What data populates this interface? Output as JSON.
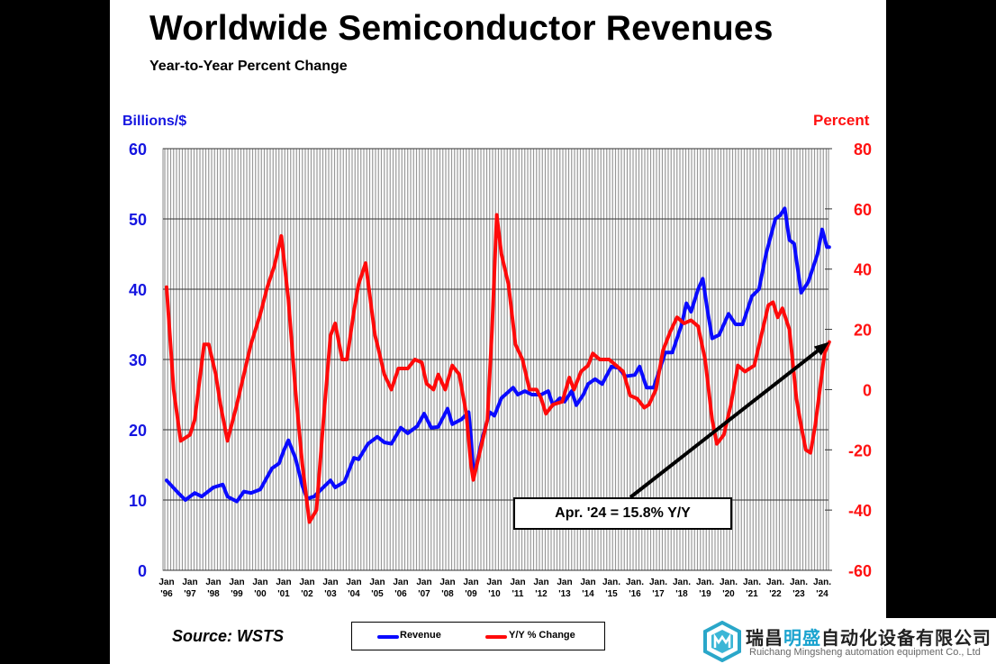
{
  "chart_data": {
    "type": "line",
    "title": "Worldwide Semiconductor Revenues",
    "subtitle": "Year-to-Year Percent Change",
    "ylabel_left": "Billions/$",
    "ylabel_right": "Percent",
    "ylim_left": [
      0,
      60
    ],
    "ylim_right": [
      -60,
      80
    ],
    "yticks_left": [
      "0",
      "10",
      "20",
      "30",
      "40",
      "50",
      "60"
    ],
    "yticks_right": [
      "-60",
      "-40",
      "-20",
      "0",
      "20",
      "40",
      "60",
      "80"
    ],
    "xticks": [
      [
        "Jan",
        "'96"
      ],
      [
        "Jan",
        "'97"
      ],
      [
        "Jan",
        "'98"
      ],
      [
        "Jan",
        "'99"
      ],
      [
        "Jan",
        "'00"
      ],
      [
        "Jan",
        "'01"
      ],
      [
        "Jan",
        "'02"
      ],
      [
        "Jan",
        "'03"
      ],
      [
        "Jan",
        "'04"
      ],
      [
        "Jan",
        "'05"
      ],
      [
        "Jan",
        "'06"
      ],
      [
        "Jan",
        "'07"
      ],
      [
        "Jan",
        "'08"
      ],
      [
        "Jan",
        "'09"
      ],
      [
        "Jan",
        "'10"
      ],
      [
        "Jan",
        "'11"
      ],
      [
        "Jan",
        "'12"
      ],
      [
        "Jan",
        "'13"
      ],
      [
        "Jan",
        "'14"
      ],
      [
        "Jan.",
        "'15"
      ],
      [
        "Jan.",
        "'16"
      ],
      [
        "Jan.",
        "'17"
      ],
      [
        "Jan.",
        "'18"
      ],
      [
        "Jan.",
        "'19"
      ],
      [
        "Jan.",
        "'20"
      ],
      [
        "Jan.",
        "'21"
      ],
      [
        "Jan.",
        "'22"
      ],
      [
        "Jan.",
        "'23"
      ],
      [
        "Jan.",
        "'24"
      ]
    ],
    "grid": true,
    "legend_placement": "bottom",
    "series": [
      {
        "name": "Revenue",
        "axis": "left",
        "color": "#0a0aff",
        "points": [
          [
            1996.0,
            12.8
          ],
          [
            1996.5,
            11
          ],
          [
            1996.8,
            10
          ],
          [
            1997.2,
            11
          ],
          [
            1997.5,
            10.5
          ],
          [
            1998.0,
            11.8
          ],
          [
            1998.4,
            12.2
          ],
          [
            1998.6,
            10.5
          ],
          [
            1999.0,
            9.8
          ],
          [
            1999.3,
            11.2
          ],
          [
            1999.6,
            11
          ],
          [
            2000.0,
            11.5
          ],
          [
            2000.5,
            14.5
          ],
          [
            2000.8,
            15.2
          ],
          [
            2001.0,
            17
          ],
          [
            2001.2,
            18.5
          ],
          [
            2001.5,
            16
          ],
          [
            2001.8,
            12
          ],
          [
            2002.0,
            10.2
          ],
          [
            2002.3,
            10.5
          ],
          [
            2002.6,
            11.5
          ],
          [
            2003.0,
            12.8
          ],
          [
            2003.2,
            11.8
          ],
          [
            2003.6,
            12.6
          ],
          [
            2004.0,
            16
          ],
          [
            2004.2,
            15.8
          ],
          [
            2004.6,
            18
          ],
          [
            2005.0,
            19
          ],
          [
            2005.3,
            18.2
          ],
          [
            2005.6,
            18
          ],
          [
            2006.0,
            20.3
          ],
          [
            2006.3,
            19.5
          ],
          [
            2006.7,
            20.5
          ],
          [
            2007.0,
            22.3
          ],
          [
            2007.3,
            20.3
          ],
          [
            2007.6,
            20.4
          ],
          [
            2008.0,
            23
          ],
          [
            2008.2,
            20.8
          ],
          [
            2008.6,
            21.5
          ],
          [
            2008.9,
            22.5
          ],
          [
            2009.0,
            19
          ],
          [
            2009.1,
            14
          ],
          [
            2009.2,
            14.5
          ],
          [
            2009.5,
            19
          ],
          [
            2009.8,
            22.5
          ],
          [
            2010.0,
            22
          ],
          [
            2010.3,
            24.5
          ],
          [
            2010.8,
            26
          ],
          [
            2011.0,
            25
          ],
          [
            2011.3,
            25.5
          ],
          [
            2011.6,
            25
          ],
          [
            2012.0,
            25
          ],
          [
            2012.3,
            25.5
          ],
          [
            2012.5,
            23.5
          ],
          [
            2012.8,
            24.5
          ],
          [
            2013.0,
            24
          ],
          [
            2013.3,
            25.5
          ],
          [
            2013.5,
            23.5
          ],
          [
            2013.8,
            25
          ],
          [
            2014.0,
            26.5
          ],
          [
            2014.3,
            27.2
          ],
          [
            2014.6,
            26.5
          ],
          [
            2015.0,
            29
          ],
          [
            2015.3,
            28.8
          ],
          [
            2015.6,
            27.6
          ],
          [
            2016.0,
            27.8
          ],
          [
            2016.2,
            29
          ],
          [
            2016.5,
            26
          ],
          [
            2016.8,
            26
          ],
          [
            2017.0,
            28
          ],
          [
            2017.3,
            31
          ],
          [
            2017.6,
            31
          ],
          [
            2018.0,
            35
          ],
          [
            2018.2,
            38
          ],
          [
            2018.4,
            36.8
          ],
          [
            2018.7,
            40
          ],
          [
            2018.9,
            41.5
          ],
          [
            2019.1,
            37
          ],
          [
            2019.3,
            33
          ],
          [
            2019.6,
            33.5
          ],
          [
            2020.0,
            36.5
          ],
          [
            2020.3,
            35
          ],
          [
            2020.6,
            35
          ],
          [
            2021.0,
            39
          ],
          [
            2021.3,
            40
          ],
          [
            2021.6,
            45
          ],
          [
            2022.0,
            50
          ],
          [
            2022.2,
            50.5
          ],
          [
            2022.4,
            51.5
          ],
          [
            2022.6,
            47
          ],
          [
            2022.8,
            46.5
          ],
          [
            2023.1,
            39.5
          ],
          [
            2023.4,
            41
          ],
          [
            2023.8,
            45
          ],
          [
            2024.0,
            48.5
          ],
          [
            2024.2,
            46
          ],
          [
            2024.3,
            46
          ]
        ]
      },
      {
        "name": "Y/Y % Change",
        "axis": "right",
        "color": "#ff0a0a",
        "points": [
          [
            1996.0,
            34
          ],
          [
            1996.3,
            0
          ],
          [
            1996.6,
            -17
          ],
          [
            1997.0,
            -15
          ],
          [
            1997.2,
            -10
          ],
          [
            1997.6,
            15
          ],
          [
            1997.8,
            15
          ],
          [
            1998.1,
            5
          ],
          [
            1998.3,
            -5
          ],
          [
            1998.6,
            -17
          ],
          [
            1999.0,
            -5
          ],
          [
            1999.3,
            5
          ],
          [
            1999.6,
            15
          ],
          [
            2000.0,
            25
          ],
          [
            2000.3,
            34
          ],
          [
            2000.6,
            41
          ],
          [
            2000.9,
            51
          ],
          [
            2001.2,
            30
          ],
          [
            2001.5,
            0
          ],
          [
            2001.8,
            -25
          ],
          [
            2002.1,
            -44
          ],
          [
            2002.4,
            -40
          ],
          [
            2002.7,
            -10
          ],
          [
            2003.0,
            18
          ],
          [
            2003.2,
            22
          ],
          [
            2003.5,
            10
          ],
          [
            2003.7,
            10
          ],
          [
            2004.0,
            26
          ],
          [
            2004.2,
            35
          ],
          [
            2004.5,
            42
          ],
          [
            2004.9,
            18
          ],
          [
            2005.0,
            15
          ],
          [
            2005.3,
            5
          ],
          [
            2005.6,
            0
          ],
          [
            2005.9,
            7
          ],
          [
            2006.3,
            7
          ],
          [
            2006.6,
            10
          ],
          [
            2006.9,
            9
          ],
          [
            2007.1,
            2
          ],
          [
            2007.4,
            0
          ],
          [
            2007.6,
            5
          ],
          [
            2007.9,
            0
          ],
          [
            2008.2,
            8
          ],
          [
            2008.5,
            5
          ],
          [
            2008.8,
            -8
          ],
          [
            2009.0,
            -25
          ],
          [
            2009.1,
            -30
          ],
          [
            2009.4,
            -20
          ],
          [
            2009.7,
            -10
          ],
          [
            2009.9,
            20
          ],
          [
            2010.1,
            58
          ],
          [
            2010.3,
            45
          ],
          [
            2010.6,
            35
          ],
          [
            2010.9,
            15
          ],
          [
            2011.2,
            10
          ],
          [
            2011.5,
            0
          ],
          [
            2011.8,
            0
          ],
          [
            2012.0,
            -3
          ],
          [
            2012.2,
            -8
          ],
          [
            2012.5,
            -5
          ],
          [
            2012.9,
            -4
          ],
          [
            2013.2,
            4
          ],
          [
            2013.4,
            0
          ],
          [
            2013.7,
            6
          ],
          [
            2014.0,
            8
          ],
          [
            2014.2,
            12
          ],
          [
            2014.5,
            10
          ],
          [
            2014.9,
            10
          ],
          [
            2015.2,
            8
          ],
          [
            2015.5,
            6
          ],
          [
            2015.8,
            -2
          ],
          [
            2016.1,
            -3
          ],
          [
            2016.4,
            -6
          ],
          [
            2016.6,
            -5
          ],
          [
            2016.9,
            0
          ],
          [
            2017.2,
            13
          ],
          [
            2017.5,
            19
          ],
          [
            2017.8,
            24
          ],
          [
            2018.1,
            22
          ],
          [
            2018.4,
            23
          ],
          [
            2018.7,
            21
          ],
          [
            2019.0,
            10
          ],
          [
            2019.3,
            -10
          ],
          [
            2019.5,
            -18
          ],
          [
            2019.8,
            -15
          ],
          [
            2020.1,
            -5
          ],
          [
            2020.4,
            8
          ],
          [
            2020.7,
            6
          ],
          [
            2021.1,
            8
          ],
          [
            2021.4,
            18
          ],
          [
            2021.7,
            28
          ],
          [
            2021.9,
            29
          ],
          [
            2022.1,
            24
          ],
          [
            2022.3,
            27
          ],
          [
            2022.6,
            20
          ],
          [
            2022.9,
            -3
          ],
          [
            2023.1,
            -12
          ],
          [
            2023.3,
            -20
          ],
          [
            2023.5,
            -21
          ],
          [
            2023.7,
            -12
          ],
          [
            2023.9,
            0
          ],
          [
            2024.1,
            12
          ],
          [
            2024.3,
            15.8
          ]
        ]
      }
    ],
    "annotation": "Apr. '24 = 15.8% Y/Y",
    "source": "Source: WSTS"
  },
  "watermark": {
    "cn_prefix": "瑞昌",
    "cn_highlight": "明盛",
    "cn_suffix": "自动化设备有限公司",
    "en": "Ruichang Mingsheng automation equipment Co., Ltd"
  }
}
